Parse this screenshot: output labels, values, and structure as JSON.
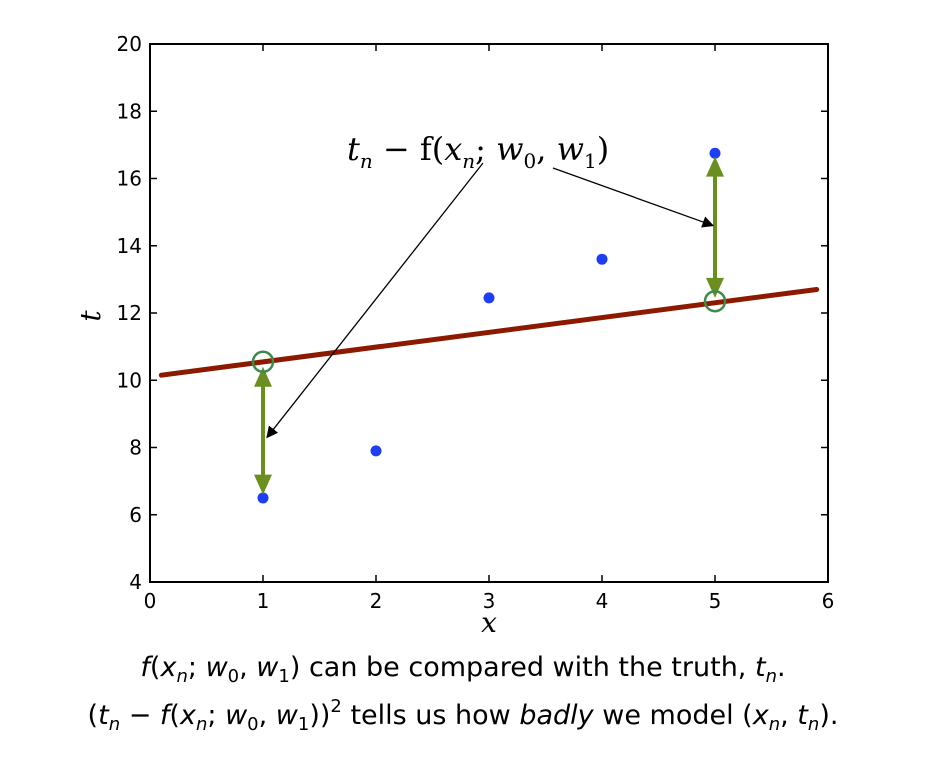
{
  "chart_data": {
    "type": "scatter",
    "xlabel": "x",
    "ylabel": "t",
    "xlim": [
      0,
      6
    ],
    "ylim": [
      4,
      20
    ],
    "xticks": [
      0,
      1,
      2,
      3,
      4,
      5,
      6
    ],
    "yticks": [
      4,
      6,
      8,
      10,
      12,
      14,
      16,
      18,
      20
    ],
    "points": [
      {
        "x": 1,
        "y": 6.5
      },
      {
        "x": 2,
        "y": 7.9
      },
      {
        "x": 3,
        "y": 12.45
      },
      {
        "x": 4,
        "y": 13.6
      },
      {
        "x": 5,
        "y": 16.75
      }
    ],
    "fit_line": {
      "x0": 0.1,
      "y0": 10.15,
      "x1": 5.9,
      "y1": 12.7,
      "color": "#8b1a00"
    },
    "highlighted_predictions": [
      {
        "x": 1,
        "y": 10.55
      },
      {
        "x": 5,
        "y": 12.35
      }
    ],
    "residual_arrows": [
      {
        "x": 1,
        "from": 6.6,
        "to": 10.4
      },
      {
        "x": 5,
        "from": 12.45,
        "to": 16.65
      }
    ],
    "annotation": {
      "text": "t_n − f(x_n; w_0, w_1)",
      "points_to_arrow_index": [
        0,
        1
      ]
    },
    "colors": {
      "points": "#1f3df5",
      "line": "#8b1a00",
      "residual": "#6a8f1e",
      "circle": "#3e8a4a"
    }
  },
  "annotation_parts": {
    "t": "t",
    "n": "n",
    "minus_f": " − f(",
    "x": "x",
    "sep": "; ",
    "w": "w",
    "sub0": "0",
    "comma": ", ",
    "sub1": "1",
    "close": ")"
  },
  "caption": {
    "line1": {
      "f": "f",
      "open": "(",
      "x": "x",
      "n": "n",
      "semi": "; ",
      "w": "w",
      "sub0": "0",
      "comma": ", ",
      "sub1": "1",
      "rest": ") can be compared with the truth, ",
      "t": "t",
      "end": "."
    },
    "line2": {
      "open": "(",
      "t": "t",
      "n": "n",
      "minus": " − ",
      "f": "f",
      "open2": "(",
      "x": "x",
      "semi": "; ",
      "w": "w",
      "sub0": "0",
      "comma": ", ",
      "sub1": "1",
      "close": "))",
      "sup": "2",
      "mid": " tells us how ",
      "badly": "badly",
      "mid2": " we model (",
      "x2": "x",
      "comma2": ", ",
      "t2": "t",
      "end": ")."
    }
  }
}
